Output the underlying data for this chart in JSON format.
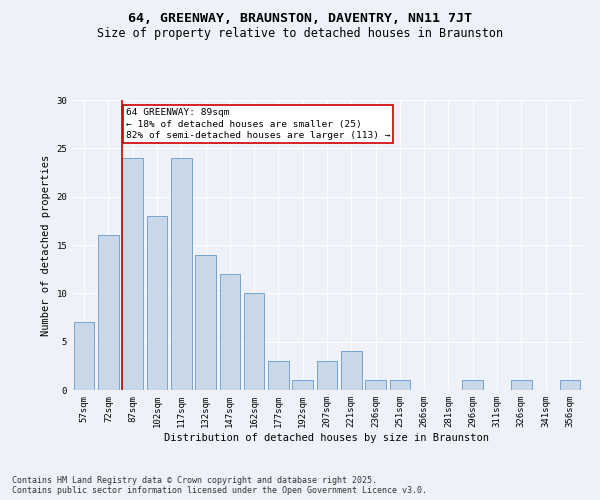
{
  "title": "64, GREENWAY, BRAUNSTON, DAVENTRY, NN11 7JT",
  "subtitle": "Size of property relative to detached houses in Braunston",
  "xlabel": "Distribution of detached houses by size in Braunston",
  "ylabel": "Number of detached properties",
  "categories": [
    "57sqm",
    "72sqm",
    "87sqm",
    "102sqm",
    "117sqm",
    "132sqm",
    "147sqm",
    "162sqm",
    "177sqm",
    "192sqm",
    "207sqm",
    "221sqm",
    "236sqm",
    "251sqm",
    "266sqm",
    "281sqm",
    "296sqm",
    "311sqm",
    "326sqm",
    "341sqm",
    "356sqm"
  ],
  "values": [
    7,
    16,
    24,
    18,
    24,
    14,
    12,
    10,
    3,
    1,
    3,
    4,
    1,
    1,
    0,
    0,
    1,
    0,
    1,
    0,
    1
  ],
  "bar_color": "#c8d8e8",
  "bar_edge_color": "#6699cc",
  "red_line_index": 2,
  "annotation_text": "64 GREENWAY: 89sqm\n← 18% of detached houses are smaller (25)\n82% of semi-detached houses are larger (113) →",
  "annotation_box_color": "#ffffff",
  "annotation_box_edge": "#cc0000",
  "red_line_color": "#cc0000",
  "ylim": [
    0,
    30
  ],
  "yticks": [
    0,
    5,
    10,
    15,
    20,
    25,
    30
  ],
  "background_color": "#eef2f8",
  "footer_line1": "Contains HM Land Registry data © Crown copyright and database right 2025.",
  "footer_line2": "Contains public sector information licensed under the Open Government Licence v3.0.",
  "title_fontsize": 9.5,
  "subtitle_fontsize": 8.5,
  "axis_label_fontsize": 7.5,
  "tick_fontsize": 6.5,
  "annotation_fontsize": 6.8,
  "footer_fontsize": 6
}
